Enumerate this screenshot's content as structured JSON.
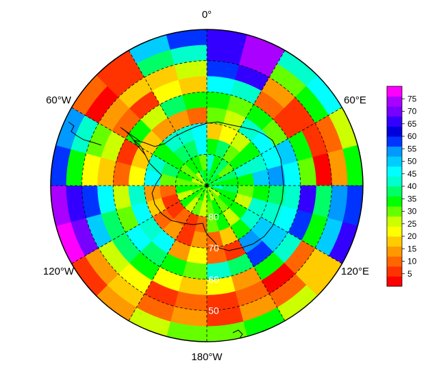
{
  "map": {
    "projection": "south-polar-stereographic",
    "longitude_labels": [
      {
        "text": "0°",
        "lon": 0
      },
      {
        "text": "60°E",
        "lon": 60
      },
      {
        "text": "120°E",
        "lon": 120
      },
      {
        "text": "180°W",
        "lon": 180
      },
      {
        "text": "120°W",
        "lon": 240
      },
      {
        "text": "60°W",
        "lon": 300
      }
    ],
    "latitude_labels": [
      {
        "text": "80",
        "lat": -80
      },
      {
        "text": "70",
        "lat": -70
      },
      {
        "text": "60",
        "lat": -60
      },
      {
        "text": "50",
        "lat": -50
      }
    ],
    "latitude_circles": [
      -80,
      -70,
      -60,
      -50
    ],
    "meridians_every_deg": 30,
    "outer_latitude": -40
  },
  "colorbar": {
    "min": 0,
    "max": 80,
    "ticks": [
      "5",
      "10",
      "15",
      "20",
      "25",
      "30",
      "35",
      "40",
      "45",
      "50",
      "55",
      "60",
      "65",
      "70",
      "75"
    ],
    "colors": [
      "#ff0000",
      "#ff3300",
      "#ff6600",
      "#ff9900",
      "#ffcc00",
      "#ffff00",
      "#ccff00",
      "#66ff00",
      "#00ff00",
      "#00ff66",
      "#00ffcc",
      "#00ffff",
      "#00ccff",
      "#0099ff",
      "#0033ff",
      "#0000dd",
      "#3300ff",
      "#7700ff",
      "#aa00ff",
      "#ff00ff"
    ]
  },
  "chart_data": {
    "type": "heatmap",
    "grid": {
      "lat_bands": [
        -40,
        -45,
        -50,
        -55,
        -60,
        -65,
        -70,
        -75,
        -80,
        -85,
        -90
      ],
      "lon_step_deg": 15
    },
    "value_range": [
      0,
      80
    ],
    "note_values_by_sector": [
      {
        "lon_from": 0,
        "lon_to": 30,
        "values_outer_to_inner": [
          72,
          70,
          60,
          45,
          30,
          25,
          20,
          35,
          40,
          35
        ]
      },
      {
        "lon_from": 30,
        "lon_to": 60,
        "values_outer_to_inner": [
          45,
          30,
          12,
          8,
          30,
          45,
          30,
          30,
          35,
          35
        ]
      },
      {
        "lon_from": 60,
        "lon_to": 90,
        "values_outer_to_inner": [
          30,
          10,
          5,
          30,
          45,
          50,
          45,
          40,
          35,
          35
        ]
      },
      {
        "lon_from": 90,
        "lon_to": 120,
        "values_outer_to_inner": [
          60,
          55,
          35,
          60,
          45,
          40,
          35,
          30,
          35,
          35
        ]
      },
      {
        "lon_from": 120,
        "lon_to": 150,
        "values_outer_to_inner": [
          20,
          15,
          5,
          35,
          55,
          50,
          40,
          30,
          30,
          30
        ]
      },
      {
        "lon_from": 150,
        "lon_to": 180,
        "values_outer_to_inner": [
          35,
          10,
          5,
          20,
          40,
          5,
          15,
          30,
          30,
          30
        ]
      },
      {
        "lon_from": 180,
        "lon_to": 210,
        "values_outer_to_inner": [
          30,
          10,
          5,
          20,
          30,
          20,
          10,
          5,
          30,
          30
        ]
      },
      {
        "lon_from": 210,
        "lon_to": 240,
        "values_outer_to_inner": [
          10,
          15,
          25,
          35,
          40,
          45,
          10,
          5,
          30,
          30
        ]
      },
      {
        "lon_from": 240,
        "lon_to": 270,
        "values_outer_to_inner": [
          75,
          65,
          55,
          40,
          30,
          45,
          15,
          10,
          30,
          30
        ]
      },
      {
        "lon_from": 270,
        "lon_to": 300,
        "values_outer_to_inner": [
          55,
          40,
          25,
          20,
          10,
          20,
          40,
          35,
          30,
          30
        ]
      },
      {
        "lon_from": 300,
        "lon_to": 330,
        "values_outer_to_inner": [
          5,
          5,
          15,
          10,
          30,
          15,
          40,
          35,
          30,
          30
        ]
      },
      {
        "lon_from": 330,
        "lon_to": 360,
        "values_outer_to_inner": [
          55,
          40,
          20,
          20,
          35,
          10,
          45,
          40,
          35,
          35
        ]
      }
    ]
  }
}
